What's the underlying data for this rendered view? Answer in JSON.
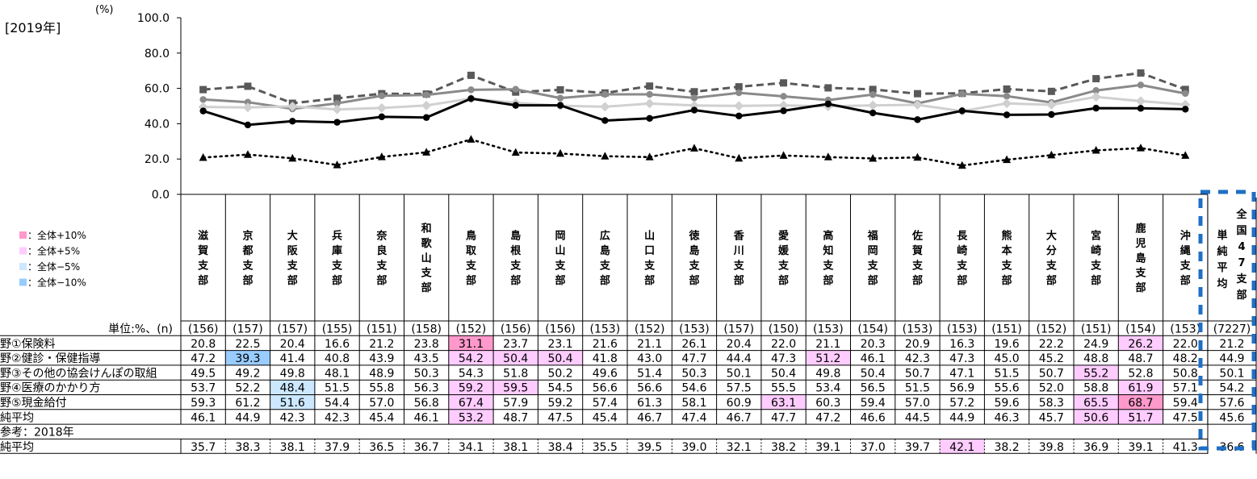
{
  "year_label": "[2019年]",
  "chart_data": {
    "type": "line",
    "ylabel": "(%)",
    "ylim": [
      0,
      100
    ],
    "yticks": [
      "0.0",
      "20.0",
      "40.0",
      "60.0",
      "80.0",
      "100.0"
    ],
    "categories": [
      "滋賀支部",
      "京都支部",
      "大阪支部",
      "兵庫支部",
      "奈良支部",
      "和歌山支部",
      "鳥取支部",
      "島根支部",
      "岡山支部",
      "広島支部",
      "山口支部",
      "徳島支部",
      "香川支部",
      "愛媛支部",
      "高知支部",
      "福岡支部",
      "佐賀支部",
      "長崎支部",
      "熊本支部",
      "大分支部",
      "宮崎支部",
      "鹿児島支部",
      "沖縄支部"
    ],
    "series": [
      {
        "name": "野①保険料",
        "style": "dotted-triangle",
        "color": "#000000",
        "values": [
          20.8,
          22.5,
          20.4,
          16.6,
          21.2,
          23.8,
          31.1,
          23.7,
          23.1,
          21.6,
          21.1,
          26.1,
          20.4,
          22.0,
          21.1,
          20.3,
          20.9,
          16.3,
          19.6,
          22.2,
          24.9,
          26.2,
          22.0
        ]
      },
      {
        "name": "野②健診・保健指導",
        "style": "solid-circle",
        "color": "#000000",
        "values": [
          47.2,
          39.3,
          41.4,
          40.8,
          43.9,
          43.5,
          54.2,
          50.4,
          50.4,
          41.8,
          43.0,
          47.7,
          44.4,
          47.3,
          51.2,
          46.1,
          42.3,
          47.3,
          45.0,
          45.2,
          48.8,
          48.7,
          48.2
        ]
      },
      {
        "name": "野③その他の協会けんぽの取組",
        "style": "solid-diamond",
        "color": "#d0d0d0",
        "values": [
          49.5,
          49.2,
          49.8,
          48.1,
          48.9,
          50.3,
          54.3,
          51.8,
          50.2,
          49.6,
          51.4,
          50.3,
          50.1,
          50.4,
          49.8,
          50.4,
          50.7,
          47.1,
          51.5,
          50.7,
          55.2,
          52.8,
          50.8
        ]
      },
      {
        "name": "野④医療のかかり方",
        "style": "solid-circle",
        "color": "#8a8a8a",
        "values": [
          53.7,
          52.2,
          48.4,
          51.5,
          55.8,
          56.3,
          59.2,
          59.5,
          54.5,
          56.6,
          56.6,
          54.6,
          57.5,
          55.5,
          53.4,
          56.5,
          51.5,
          56.9,
          55.6,
          52.0,
          58.8,
          61.9,
          57.1
        ]
      },
      {
        "name": "野⑤現金給付",
        "style": "dashed-square",
        "color": "#595959",
        "values": [
          59.3,
          61.2,
          51.6,
          54.4,
          57.0,
          56.8,
          67.4,
          57.9,
          59.2,
          57.4,
          61.3,
          58.1,
          60.9,
          63.1,
          60.3,
          59.4,
          57.0,
          57.2,
          59.6,
          58.3,
          65.5,
          68.7,
          59.4
        ]
      }
    ]
  },
  "legend": {
    "items": [
      {
        "label": "：全体+10%",
        "color": "#ff99cc"
      },
      {
        "label": "：全体+5%",
        "color": "#ffccff"
      },
      {
        "label": "：全体−5%",
        "color": "#cce8ff"
      },
      {
        "label": "：全体−10%",
        "color": "#99ccff"
      }
    ]
  },
  "highlight_colors": {
    "p10": "#ff99cc",
    "p5": "#ffccff",
    "m5": "#cce8ff",
    "m10": "#99ccff"
  },
  "table": {
    "unit_label": "単位:%、(n)",
    "n_values": [
      "(156)",
      "(157)",
      "(157)",
      "(155)",
      "(151)",
      "(158)",
      "(152)",
      "(156)",
      "(156)",
      "(153)",
      "(152)",
      "(153)",
      "(157)",
      "(150)",
      "(153)",
      "(154)",
      "(153)",
      "(153)",
      "(151)",
      "(152)",
      "(151)",
      "(154)",
      "(153)"
    ],
    "total_header": "単純平均全国47支部",
    "total_n": "(7227)",
    "rows": [
      {
        "label": "野①保険料",
        "values": [
          "20.8",
          "22.5",
          "20.4",
          "16.6",
          "21.2",
          "23.8",
          "31.1",
          "23.7",
          "23.1",
          "21.6",
          "21.1",
          "26.1",
          "20.4",
          "22.0",
          "21.1",
          "20.3",
          "20.9",
          "16.3",
          "19.6",
          "22.2",
          "24.9",
          "26.2",
          "22.0"
        ],
        "hl": [
          "",
          "",
          "",
          "",
          "",
          "",
          "p10",
          "",
          "",
          "",
          "",
          "",
          "",
          "",
          "",
          "",
          "",
          "",
          "",
          "",
          "",
          "p5",
          ""
        ],
        "total": "21.2"
      },
      {
        "label": "野②健診・保健指導",
        "values": [
          "47.2",
          "39.3",
          "41.4",
          "40.8",
          "43.9",
          "43.5",
          "54.2",
          "50.4",
          "50.4",
          "41.8",
          "43.0",
          "47.7",
          "44.4",
          "47.3",
          "51.2",
          "46.1",
          "42.3",
          "47.3",
          "45.0",
          "45.2",
          "48.8",
          "48.7",
          "48.2"
        ],
        "hl": [
          "",
          "m10",
          "",
          "",
          "",
          "",
          "p5",
          "p5",
          "p5",
          "",
          "",
          "",
          "",
          "",
          "p5",
          "",
          "",
          "",
          "",
          "",
          "",
          "",
          ""
        ],
        "total": "44.9"
      },
      {
        "label": "野③その他の協会けんぽの取組",
        "values": [
          "49.5",
          "49.2",
          "49.8",
          "48.1",
          "48.9",
          "50.3",
          "54.3",
          "51.8",
          "50.2",
          "49.6",
          "51.4",
          "50.3",
          "50.1",
          "50.4",
          "49.8",
          "50.4",
          "50.7",
          "47.1",
          "51.5",
          "50.7",
          "55.2",
          "52.8",
          "50.8"
        ],
        "hl": [
          "",
          "",
          "",
          "",
          "",
          "",
          "",
          "",
          "",
          "",
          "",
          "",
          "",
          "",
          "",
          "",
          "",
          "",
          "",
          "",
          "p5",
          "",
          ""
        ],
        "total": "50.1"
      },
      {
        "label": "野④医療のかかり方",
        "values": [
          "53.7",
          "52.2",
          "48.4",
          "51.5",
          "55.8",
          "56.3",
          "59.2",
          "59.5",
          "54.5",
          "56.6",
          "56.6",
          "54.6",
          "57.5",
          "55.5",
          "53.4",
          "56.5",
          "51.5",
          "56.9",
          "55.6",
          "52.0",
          "58.8",
          "61.9",
          "57.1"
        ],
        "hl": [
          "",
          "",
          "m5",
          "",
          "",
          "",
          "p5",
          "p5",
          "",
          "",
          "",
          "",
          "",
          "",
          "",
          "",
          "",
          "",
          "",
          "",
          "",
          "p5",
          ""
        ],
        "total": "54.2"
      },
      {
        "label": "野⑤現金給付",
        "values": [
          "59.3",
          "61.2",
          "51.6",
          "54.4",
          "57.0",
          "56.8",
          "67.4",
          "57.9",
          "59.2",
          "57.4",
          "61.3",
          "58.1",
          "60.9",
          "63.1",
          "60.3",
          "59.4",
          "57.0",
          "57.2",
          "59.6",
          "58.3",
          "65.5",
          "68.7",
          "59.4"
        ],
        "hl": [
          "",
          "",
          "m5",
          "",
          "",
          "",
          "p5",
          "",
          "",
          "",
          "",
          "",
          "",
          "p5",
          "",
          "",
          "",
          "",
          "",
          "",
          "p5",
          "p10",
          ""
        ],
        "total": "57.6"
      },
      {
        "label": "純平均",
        "values": [
          "46.1",
          "44.9",
          "42.3",
          "42.3",
          "45.4",
          "46.1",
          "53.2",
          "48.7",
          "47.5",
          "45.4",
          "46.7",
          "47.4",
          "46.7",
          "47.7",
          "47.2",
          "46.6",
          "44.5",
          "44.9",
          "46.3",
          "45.7",
          "50.6",
          "51.7",
          "47.5"
        ],
        "hl": [
          "",
          "",
          "",
          "",
          "",
          "",
          "p5",
          "",
          "",
          "",
          "",
          "",
          "",
          "",
          "",
          "",
          "",
          "",
          "",
          "",
          "p5",
          "p5",
          ""
        ],
        "total": "45.6"
      }
    ],
    "ref_label": "参考：2018年",
    "ref_row": {
      "label": "純平均",
      "values": [
        "35.7",
        "38.3",
        "38.1",
        "37.9",
        "36.5",
        "36.7",
        "34.1",
        "38.1",
        "38.4",
        "35.5",
        "39.5",
        "39.0",
        "32.1",
        "38.2",
        "39.1",
        "37.0",
        "39.7",
        "42.1",
        "38.2",
        "39.8",
        "36.9",
        "39.1",
        "41.3"
      ],
      "hl": [
        "",
        "",
        "",
        "",
        "",
        "",
        "",
        "",
        "",
        "",
        "",
        "",
        "",
        "",
        "",
        "",
        "",
        "p5",
        "",
        "",
        "",
        "",
        ""
      ],
      "total": "36.6"
    }
  }
}
